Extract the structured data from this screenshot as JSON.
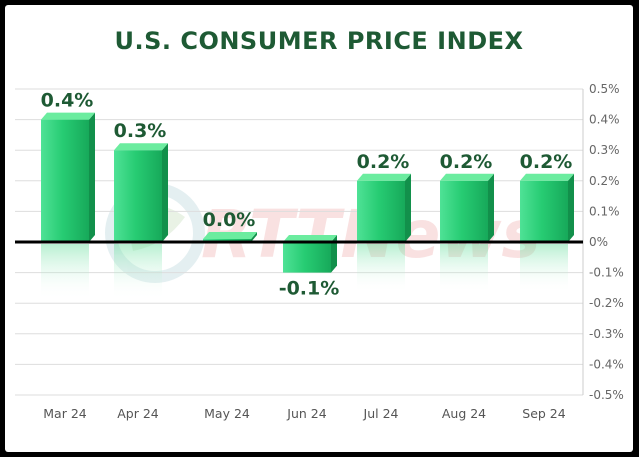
{
  "chart_data": {
    "type": "bar",
    "title": "U.S. CONSUMER PRICE INDEX",
    "categories": [
      "Mar 24",
      "Apr 24",
      "May 24",
      "Jun 24",
      "Jul 24",
      "Aug 24",
      "Sep 24"
    ],
    "values": [
      0.4,
      0.3,
      0.0,
      -0.1,
      0.2,
      0.2,
      0.2
    ],
    "data_labels": [
      "0.4%",
      "0.3%",
      "0.0%",
      "-0.1%",
      "0.2%",
      "0.2%",
      "0.2%"
    ],
    "ylim": [
      -0.5,
      0.5
    ],
    "yticks": [
      0.5,
      0.4,
      0.3,
      0.2,
      0.1,
      0,
      -0.1,
      -0.2,
      -0.3,
      -0.4,
      -0.5
    ],
    "ytick_labels": [
      "0.5%",
      "0.4%",
      "0.3%",
      "0.2%",
      "0.1%",
      "0%",
      "-0.1%",
      "-0.2%",
      "-0.3%",
      "-0.4%",
      "-0.5%"
    ],
    "y_axis_position": "right",
    "grid": true,
    "watermark": "RTTNews",
    "colors": {
      "bar": "#22c56f",
      "bar_highlight": "#5fe8a0",
      "bar_top": "#6bec9f",
      "title": "#1e5a34",
      "data_label": "#1e5a34",
      "zero_line": "#000000",
      "grid": "#dddddd"
    }
  }
}
